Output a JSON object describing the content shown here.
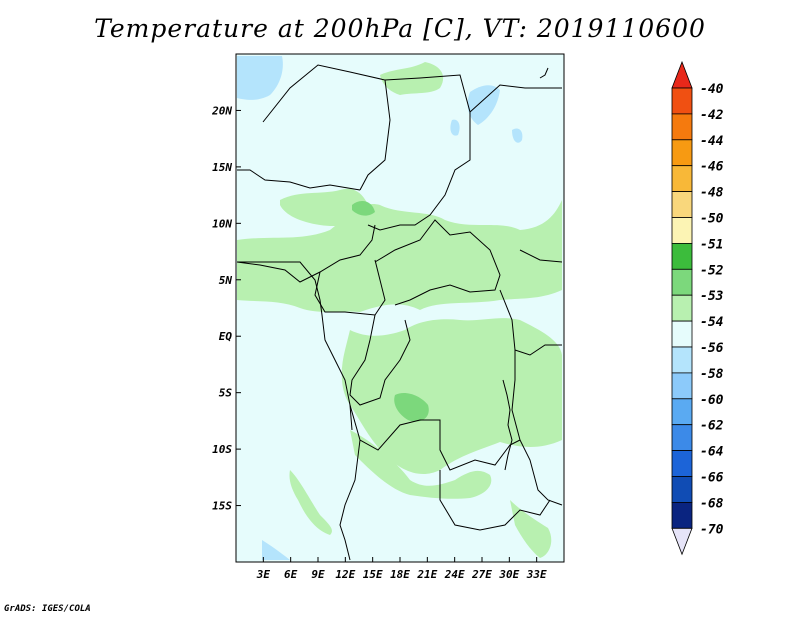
{
  "title": "Temperature at 200hPa [C], VT: 2019110600",
  "credit": "GrADS: IGES/COLA",
  "map": {
    "lon_range": [
      0,
      36
    ],
    "lat_range": [
      -20,
      25
    ],
    "x_ticks": [
      "3E",
      "6E",
      "9E",
      "12E",
      "15E",
      "18E",
      "21E",
      "24E",
      "27E",
      "30E",
      "33E"
    ],
    "y_ticks": [
      "20N",
      "15N",
      "10N",
      "5N",
      "EQ",
      "5S",
      "10S",
      "15S"
    ]
  },
  "colorbar": {
    "labels": [
      "-40",
      "-42",
      "-44",
      "-46",
      "-48",
      "-50",
      "-51",
      "-52",
      "-53",
      "-54",
      "-56",
      "-58",
      "-60",
      "-62",
      "-64",
      "-66",
      "-68",
      "-70"
    ],
    "colors": [
      "#e8281a",
      "#f05012",
      "#f57a0e",
      "#f79a12",
      "#f8b838",
      "#f9d77c",
      "#fcf4b4",
      "#3cbc3c",
      "#7cd87c",
      "#b8f0b0",
      "#e6fcfc",
      "#b4e4fc",
      "#8ccafa",
      "#5aaaf2",
      "#3c8ae8",
      "#1c64d8",
      "#104cb4",
      "#0a2480",
      "#e6e4f8"
    ]
  }
}
